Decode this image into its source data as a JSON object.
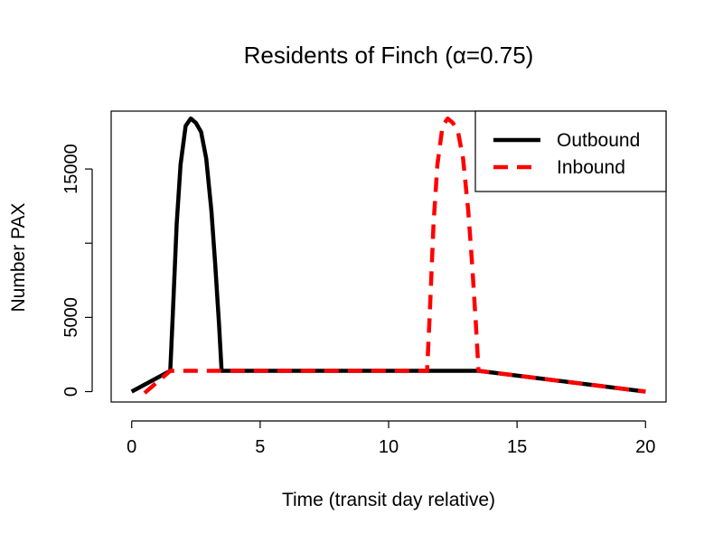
{
  "chart_data": {
    "type": "line",
    "title": "Residents of Finch (α=0.75)",
    "xlabel": "Time (transit day relative)",
    "ylabel": "Number PAX",
    "xlim": [
      -0.8,
      20.8
    ],
    "ylim": [
      -700,
      18900
    ],
    "x_ticks": [
      0,
      5,
      10,
      15,
      20
    ],
    "x_tick_labels": [
      "0",
      "5",
      "10",
      "15",
      "20"
    ],
    "y_ticks": [
      0,
      5000,
      10000,
      15000
    ],
    "y_tick_labels": [
      "0",
      "5000",
      "",
      "15000"
    ],
    "grid": false,
    "legend_position": "top-right",
    "series": [
      {
        "name": "Outbound",
        "color": "#000000",
        "dash": "solid",
        "x": [
          0,
          1.5,
          1.6,
          1.75,
          1.9,
          2.1,
          2.3,
          2.5,
          2.7,
          2.9,
          3.1,
          3.25,
          3.4,
          3.5,
          13.5,
          20
        ],
        "y": [
          0,
          1400,
          5200,
          11300,
          15300,
          17900,
          18400,
          18100,
          17500,
          15700,
          12200,
          8600,
          4500,
          1400,
          1400,
          0
        ]
      },
      {
        "name": "Inbound",
        "color": "#ff0000",
        "dash": "dashed",
        "x": [
          0.5,
          1.5,
          11.5,
          11.6,
          11.75,
          11.9,
          12.1,
          12.3,
          12.5,
          12.7,
          12.9,
          13.1,
          13.25,
          13.4,
          13.5,
          20
        ],
        "y": [
          -100,
          1400,
          1400,
          5200,
          11300,
          15300,
          17900,
          18400,
          18100,
          17500,
          15700,
          12200,
          8600,
          4500,
          1400,
          0
        ]
      }
    ]
  }
}
